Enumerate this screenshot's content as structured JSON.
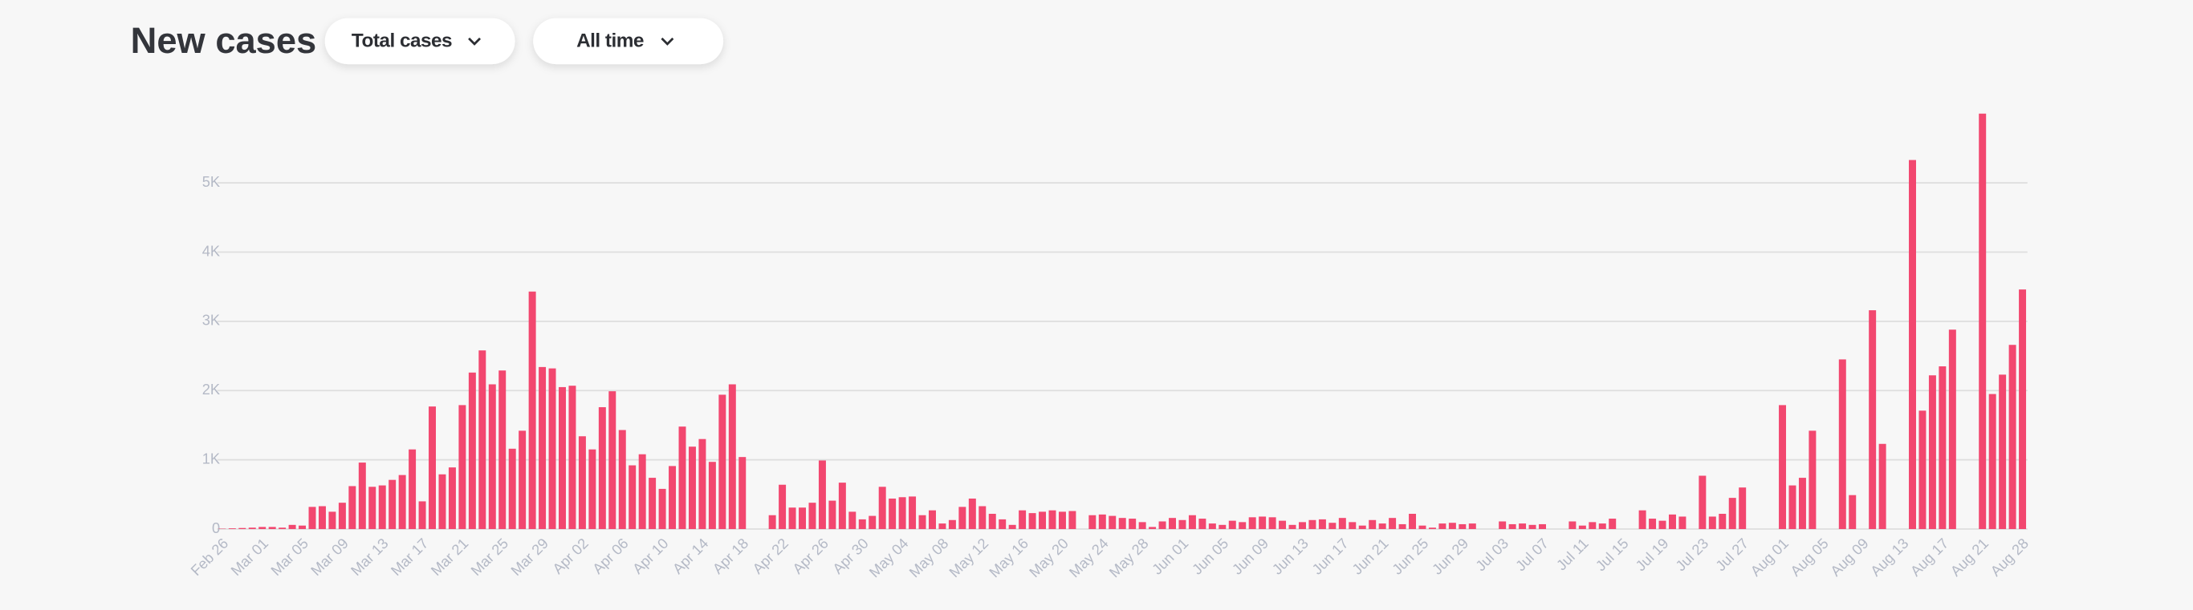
{
  "header": {
    "title": "New cases",
    "dropdowns": [
      "Total cases",
      "All time"
    ]
  },
  "chart_data": {
    "type": "bar",
    "color": "#f2476f",
    "grid": true,
    "ylim": [
      0,
      6000
    ],
    "yticks": [
      0,
      {
        "value": 1000,
        "label": "1K"
      },
      {
        "value": 2000,
        "label": "2K"
      },
      {
        "value": 3000,
        "label": "3K"
      },
      {
        "value": 4000,
        "label": "4K"
      },
      {
        "value": 5000,
        "label": "5K"
      }
    ],
    "categories": [
      "Feb 26",
      null,
      null,
      null,
      "Mar 01",
      null,
      null,
      null,
      "Mar 05",
      null,
      null,
      null,
      "Mar 09",
      null,
      null,
      null,
      "Mar 13",
      null,
      null,
      null,
      "Mar 17",
      null,
      null,
      null,
      "Mar 21",
      null,
      null,
      null,
      "Mar 25",
      null,
      null,
      null,
      "Mar 29",
      null,
      null,
      null,
      "Apr 02",
      null,
      null,
      null,
      "Apr 06",
      null,
      null,
      null,
      "Apr 10",
      null,
      null,
      null,
      "Apr 14",
      null,
      null,
      null,
      "Apr 18",
      null,
      null,
      null,
      "Apr 22",
      null,
      null,
      null,
      "Apr 26",
      null,
      null,
      null,
      "Apr 30",
      null,
      null,
      null,
      "May 04",
      null,
      null,
      null,
      "May 08",
      null,
      null,
      null,
      "May 12",
      null,
      null,
      null,
      "May 16",
      null,
      null,
      null,
      "May 20",
      null,
      null,
      null,
      "May 24",
      null,
      null,
      null,
      "May 28",
      null,
      null,
      null,
      "Jun 01",
      null,
      null,
      null,
      "Jun 05",
      null,
      null,
      null,
      "Jun 09",
      null,
      null,
      null,
      "Jun 13",
      null,
      null,
      null,
      "Jun 17",
      null,
      null,
      null,
      "Jun 21",
      null,
      null,
      null,
      "Jun 25",
      null,
      null,
      null,
      "Jun 29",
      null,
      null,
      null,
      "Jul 03",
      null,
      null,
      null,
      "Jul 07",
      null,
      null,
      null,
      "Jul 11",
      null,
      null,
      null,
      "Jul 15",
      null,
      null,
      null,
      "Jul 19",
      null,
      null,
      null,
      "Jul 23",
      null,
      null,
      null,
      "Jul 27",
      null,
      null,
      null,
      "Aug 01",
      null,
      null,
      null,
      "Aug 05",
      null,
      null,
      null,
      "Aug 09",
      null,
      null,
      null,
      "Aug 13",
      null,
      null,
      null,
      "Aug 17",
      null,
      null,
      null,
      "Aug 21",
      null,
      null,
      null,
      "Aug 28"
    ],
    "values": [
      5,
      10,
      15,
      20,
      30,
      30,
      20,
      60,
      50,
      320,
      330,
      250,
      380,
      620,
      960,
      610,
      630,
      710,
      780,
      1150,
      400,
      1770,
      790,
      890,
      1790,
      2260,
      2580,
      2090,
      2290,
      1160,
      1420,
      3430,
      2340,
      2320,
      2050,
      2070,
      1340,
      1150,
      1760,
      1990,
      1430,
      920,
      1080,
      740,
      580,
      910,
      1480,
      1190,
      1300,
      970,
      1940,
      2090,
      1040,
      0,
      0,
      200,
      640,
      310,
      310,
      380,
      990,
      410,
      670,
      250,
      140,
      190,
      610,
      440,
      460,
      470,
      200,
      270,
      80,
      130,
      320,
      440,
      330,
      220,
      140,
      60,
      270,
      230,
      250,
      270,
      250,
      260,
      0,
      200,
      210,
      190,
      160,
      150,
      100,
      30,
      110,
      160,
      130,
      200,
      150,
      80,
      60,
      120,
      100,
      170,
      180,
      170,
      120,
      60,
      100,
      130,
      140,
      90,
      160,
      100,
      50,
      130,
      80,
      160,
      70,
      220,
      50,
      20,
      80,
      90,
      70,
      80,
      0,
      0,
      110,
      70,
      80,
      60,
      70,
      0,
      0,
      110,
      50,
      100,
      80,
      150,
      0,
      0,
      270,
      150,
      120,
      210,
      180,
      0,
      770,
      180,
      220,
      450,
      600,
      0,
      0,
      0,
      1790,
      630,
      740,
      1420,
      0,
      0,
      2450,
      490,
      0,
      3160,
      1230,
      0,
      0,
      5330,
      1710,
      2220,
      2350,
      2880,
      0,
      0,
      6000,
      1950,
      2230,
      2660,
      3460
    ]
  }
}
